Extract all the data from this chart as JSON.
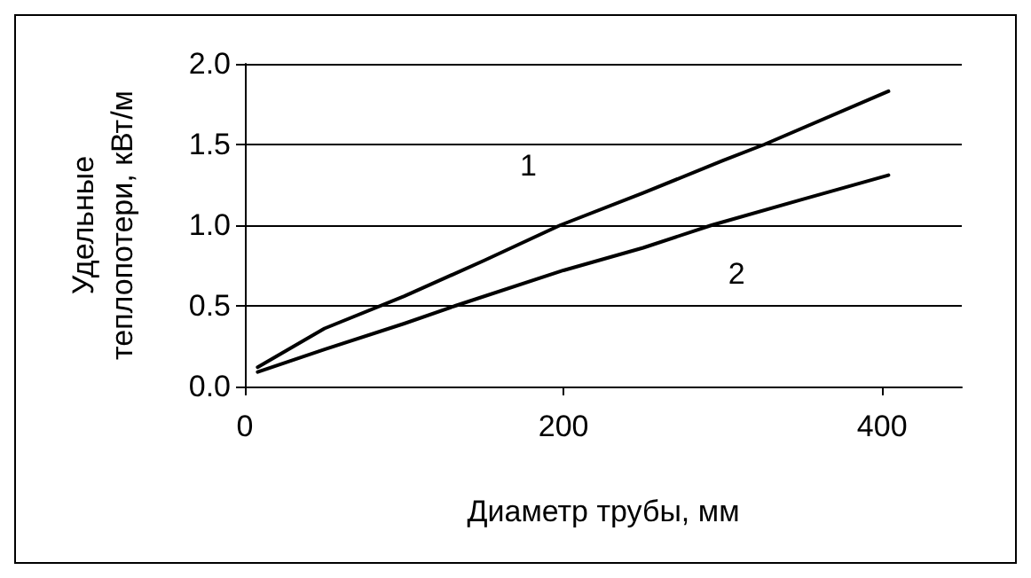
{
  "chart_data": {
    "type": "line",
    "xlabel": "Диаметр трубы, мм",
    "ylabel": "Удельные\nтеплопотери, кВт/м",
    "x": [
      8,
      50,
      100,
      150,
      198,
      250,
      300,
      326,
      404
    ],
    "series": [
      {
        "name": "1",
        "color": "#000000",
        "values": [
          0.12,
          0.36,
          0.56,
          0.78,
          1.0,
          1.2,
          1.4,
          1.5,
          1.83
        ]
      },
      {
        "name": "2",
        "color": "#000000",
        "x": [
          8,
          50,
          100,
          132,
          200,
          250,
          293,
          350,
          404
        ],
        "values": [
          0.09,
          0.23,
          0.39,
          0.5,
          0.72,
          0.86,
          1.0,
          1.16,
          1.31
        ]
      }
    ],
    "xlim": [
      0,
      450
    ],
    "xticks": [
      0,
      200,
      400
    ],
    "ylim": [
      0,
      2
    ],
    "yticks": [
      {
        "value": 0,
        "label": "0.0"
      },
      0.5,
      {
        "value": 1,
        "label": "1.0"
      },
      1.5,
      {
        "value": 2,
        "label": "2.0"
      }
    ],
    "grid": "y",
    "marker": "none",
    "line_style": "solid"
  }
}
